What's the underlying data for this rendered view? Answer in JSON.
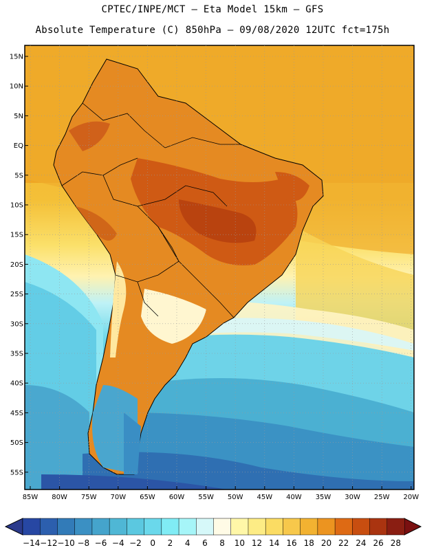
{
  "header": {
    "line1": "CPTEC/INPE/MCT –  Eta Model 15km – GFS",
    "line2": "Absolute Temperature (C) 850hPa – 09/08/2020 12UTC fct=175h"
  },
  "map": {
    "region": "South America",
    "projection": "lat-lon grid",
    "lat_labels": [
      "15N",
      "10N",
      "5N",
      "EQ",
      "5S",
      "10S",
      "15S",
      "20S",
      "25S",
      "30S",
      "35S",
      "40S",
      "45S",
      "50S",
      "55S"
    ],
    "lon_labels": [
      "85W",
      "80W",
      "75W",
      "70W",
      "65W",
      "60W",
      "55W",
      "50W",
      "45W",
      "40W",
      "35W",
      "30W",
      "25W",
      "20W"
    ]
  },
  "colorbar": {
    "ticks": [
      "-14",
      "-12",
      "-10",
      "-8",
      "-6",
      "-4",
      "-2",
      "0",
      "2",
      "4",
      "6",
      "8",
      "10",
      "12",
      "14",
      "16",
      "18",
      "20",
      "22",
      "24",
      "26",
      "28"
    ],
    "low_color": "#2b3a8c",
    "high_color": "#7a1010",
    "colors": [
      "#2747a3",
      "#2c5fae",
      "#327bb8",
      "#3b90c3",
      "#45a4cc",
      "#4fb7d5",
      "#5bc8e0",
      "#6ad8eb",
      "#80ecf5",
      "#a6f5f8",
      "#d6f8f9",
      "#fffbe6",
      "#fff7a8",
      "#fdec85",
      "#fbdc63",
      "#f7c84b",
      "#f2b231",
      "#ec9420",
      "#de6a14",
      "#c84e10",
      "#aa3410",
      "#8a1e12"
    ]
  }
}
